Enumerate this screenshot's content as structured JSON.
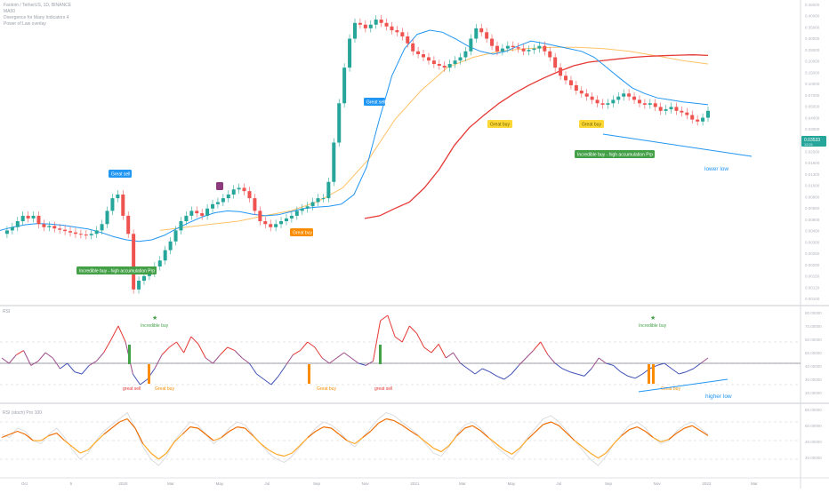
{
  "legend": {
    "symbol": "Fantom / TetherUS, 1D, BINANCE",
    "indicators": [
      "MA50",
      "Divergence for Many Indicators 4",
      "Power of Law overlay"
    ]
  },
  "colors": {
    "up_candle": "#26a69a",
    "down_candle": "#ef5350",
    "ma_blue": "#2196f3",
    "ma_red": "#e53935",
    "ma_orange": "#ffb74d",
    "annot_blue": "#2196f3",
    "annot_green": "#43a047",
    "annot_orange": "#fb8c00",
    "annot_yellow": "#fdd835",
    "annot_purple": "#8e3a7e",
    "trendline": "#2196f3",
    "rsi_low": "#3f51b5",
    "rsi_high": "#e53935",
    "stoch_low": "#ffa726",
    "stoch_high": "#ef6c00",
    "price_tag": "#26a69a"
  },
  "chart_data": [
    {
      "type": "candlestick",
      "panel": "price",
      "x_axis_labels": [
        "Oct",
        "5",
        "2020",
        "Mar",
        "May",
        "Jul",
        "Sep",
        "Nov",
        "2021",
        "Mar",
        "May",
        "Jul",
        "Sep",
        "Nov",
        "2022",
        "Mar"
      ],
      "price_ticks": [
        "0.45000",
        "0.40000",
        "0.35000",
        "0.30000",
        "0.25000",
        "0.20000",
        "0.15000",
        "0.10000",
        "0.07000",
        "0.05000",
        "0.04000",
        "0.03000",
        "0.02500",
        "0.02000",
        "0.01600",
        "0.01300",
        "0.01000",
        "0.00800",
        "0.00650",
        "0.00500",
        "0.00400",
        "0.00300",
        "0.00250",
        "0.00200",
        "0.00150",
        "0.00120",
        "0.00100"
      ],
      "last_price": "0.03533",
      "last_price_sub": "12:01",
      "close_series": [
        0.008,
        0.0085,
        0.009,
        0.01,
        0.011,
        0.0105,
        0.011,
        0.0095,
        0.009,
        0.0092,
        0.0088,
        0.0086,
        0.0084,
        0.0082,
        0.008,
        0.0079,
        0.0078,
        0.008,
        0.0085,
        0.0095,
        0.012,
        0.015,
        0.016,
        0.011,
        0.008,
        0.003,
        0.0035,
        0.0038,
        0.004,
        0.0045,
        0.005,
        0.006,
        0.007,
        0.0085,
        0.01,
        0.011,
        0.012,
        0.0115,
        0.011,
        0.0125,
        0.0135,
        0.014,
        0.015,
        0.016,
        0.0175,
        0.018,
        0.017,
        0.015,
        0.012,
        0.01,
        0.0095,
        0.009,
        0.0095,
        0.01,
        0.0105,
        0.011,
        0.012,
        0.0125,
        0.013,
        0.014,
        0.015,
        0.015,
        0.02,
        0.04,
        0.08,
        0.15,
        0.25,
        0.33,
        0.32,
        0.3,
        0.32,
        0.35,
        0.33,
        0.31,
        0.29,
        0.28,
        0.26,
        0.23,
        0.2,
        0.19,
        0.18,
        0.17,
        0.16,
        0.155,
        0.15,
        0.16,
        0.17,
        0.18,
        0.2,
        0.25,
        0.3,
        0.28,
        0.25,
        0.22,
        0.2,
        0.21,
        0.22,
        0.215,
        0.21,
        0.2,
        0.205,
        0.21,
        0.22,
        0.2,
        0.18,
        0.15,
        0.13,
        0.12,
        0.11,
        0.1,
        0.095,
        0.09,
        0.085,
        0.08,
        0.078,
        0.08,
        0.085,
        0.09,
        0.095,
        0.09,
        0.085,
        0.08,
        0.078,
        0.08,
        0.075,
        0.07,
        0.072,
        0.075,
        0.07,
        0.068,
        0.065,
        0.06,
        0.058,
        0.062,
        0.07
      ],
      "ma_blue": [
        0.0085,
        0.009,
        0.0094,
        0.0096,
        0.0095,
        0.0093,
        0.009,
        0.0087,
        0.0082,
        0.0076,
        0.0072,
        0.007,
        0.0072,
        0.0078,
        0.0088,
        0.0098,
        0.0108,
        0.0116,
        0.012,
        0.0118,
        0.0113,
        0.011,
        0.0112,
        0.0118,
        0.0125,
        0.0128,
        0.013,
        0.0135,
        0.016,
        0.026,
        0.06,
        0.13,
        0.21,
        0.27,
        0.29,
        0.28,
        0.25,
        0.22,
        0.2,
        0.19,
        0.2,
        0.22,
        0.24,
        0.23,
        0.22,
        0.21,
        0.2,
        0.18,
        0.15,
        0.125,
        0.105,
        0.095,
        0.088,
        0.085,
        0.082,
        0.08,
        0.078
      ],
      "ma_red": [
        0.0105,
        0.011,
        0.0125,
        0.014,
        0.018,
        0.025,
        0.038,
        0.052,
        0.065,
        0.08,
        0.095,
        0.11,
        0.125,
        0.14,
        0.155,
        0.165,
        0.17,
        0.175,
        0.18,
        0.183,
        0.185,
        0.187,
        0.188,
        0.186
      ],
      "ma_orange": [
        0.0085,
        0.009,
        0.0095,
        0.01,
        0.011,
        0.012,
        0.014,
        0.018,
        0.03,
        0.06,
        0.1,
        0.15,
        0.18,
        0.2,
        0.21,
        0.215,
        0.215,
        0.21,
        0.2,
        0.185,
        0.17,
        0.16
      ],
      "annotations": [
        {
          "text": "Great sell",
          "color": "blue"
        },
        {
          "text": "Incredible buy - high accumulation Prp",
          "color": "green"
        },
        {
          "text": "Great buy",
          "color": "orange"
        },
        {
          "text": "Great sell",
          "color": "blue"
        },
        {
          "text": "Great buy",
          "color": "yellow"
        },
        {
          "text": "Great buy",
          "color": "yellow"
        },
        {
          "text": "Incredible buy - high accumulation Prp",
          "color": "green"
        },
        {
          "text": "lower low",
          "color": "blue"
        }
      ]
    },
    {
      "type": "line",
      "panel": "rsi",
      "title": "RSI",
      "series": [
        {
          "values": [
            55,
            50,
            58,
            62,
            48,
            52,
            60,
            55,
            45,
            50,
            42,
            40,
            48,
            52,
            60,
            72,
            85,
            70,
            40,
            30,
            35,
            45,
            58,
            65,
            70,
            60,
            75,
            68,
            55,
            50,
            58,
            65,
            62,
            55,
            50,
            40,
            35,
            30,
            38,
            48,
            58,
            62,
            70,
            65,
            55,
            50,
            55,
            60,
            55,
            50,
            48,
            52,
            90,
            95,
            75,
            70,
            85,
            78,
            65,
            60,
            68,
            55,
            60,
            50,
            45,
            40,
            45,
            42,
            38,
            35,
            40,
            48,
            55,
            62,
            70,
            58,
            50,
            45,
            42,
            40,
            38,
            45,
            55,
            50,
            48,
            42,
            38,
            36,
            40,
            45,
            48,
            50,
            45,
            40,
            42,
            45,
            50,
            55
          ]
        }
      ],
      "annotations": [
        {
          "text": "Incredible buy",
          "color": "green"
        },
        {
          "text": "great sell",
          "color": "red"
        },
        {
          "text": "Great buy",
          "color": "orange"
        },
        {
          "text": "Great buy",
          "color": "orange"
        },
        {
          "text": "great sell",
          "color": "red"
        },
        {
          "text": "Incredible buy",
          "color": "green"
        },
        {
          "text": "Great buy",
          "color": "orange"
        },
        {
          "text": "higher low",
          "color": "blue"
        }
      ]
    },
    {
      "type": "line",
      "panel": "stoch_rsi",
      "title": "RSI (stoch) Pro 100",
      "series": [
        {
          "values": [
            60,
            55,
            70,
            65,
            50,
            45,
            60,
            70,
            55,
            35,
            20,
            30,
            50,
            65,
            75,
            85,
            95,
            70,
            40,
            20,
            10,
            25,
            50,
            65,
            80,
            75,
            60,
            45,
            55,
            70,
            80,
            75,
            60,
            45,
            30,
            20,
            15,
            25,
            40,
            55,
            70,
            80,
            75,
            65,
            50,
            40,
            55,
            70,
            85,
            95,
            90,
            80,
            70,
            60,
            45,
            30,
            25,
            40,
            60,
            75,
            80,
            70,
            55,
            40,
            30,
            20,
            35,
            55,
            70,
            85,
            90,
            80,
            65,
            50,
            35,
            20,
            10,
            25,
            45,
            60,
            75,
            80,
            70,
            55,
            45,
            50,
            65,
            75,
            80,
            70,
            60
          ]
        },
        {
          "values": [
            55,
            60,
            65,
            60,
            50,
            50,
            58,
            62,
            50,
            40,
            30,
            35,
            48,
            60,
            70,
            80,
            85,
            70,
            45,
            30,
            20,
            30,
            48,
            60,
            72,
            70,
            60,
            50,
            55,
            65,
            72,
            70,
            58,
            45,
            35,
            28,
            25,
            30,
            42,
            55,
            65,
            72,
            70,
            60,
            50,
            45,
            55,
            65,
            78,
            85,
            82,
            75,
            66,
            58,
            48,
            38,
            32,
            42,
            58,
            70,
            74,
            66,
            55,
            45,
            35,
            28,
            38,
            52,
            64,
            76,
            80,
            74,
            62,
            50,
            40,
            30,
            22,
            30,
            45,
            58,
            68,
            72,
            65,
            55,
            48,
            52,
            62,
            70,
            74,
            66,
            58
          ]
        }
      ]
    }
  ]
}
